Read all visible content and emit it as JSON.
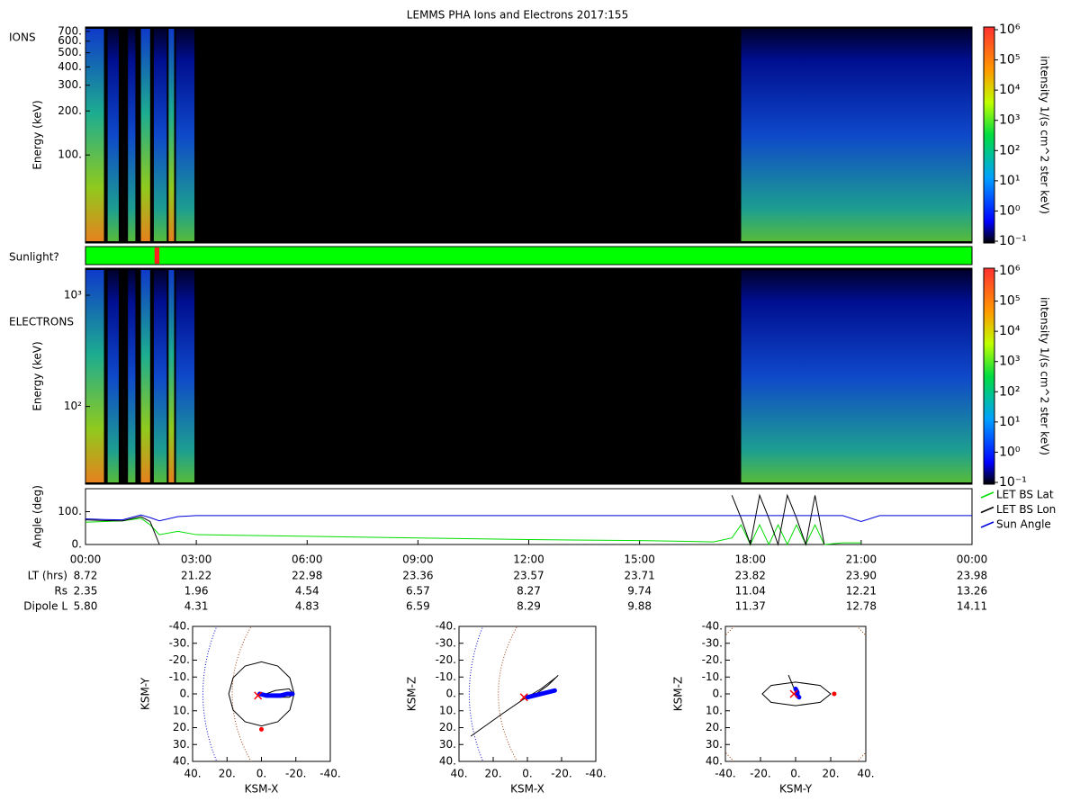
{
  "title": "LEMMS PHA Ions and Electrons  2017:155",
  "sunlight": {
    "label": "Sunlight?",
    "color": "#00ff00",
    "shade_color": "#ff2020",
    "shade": [
      1.87,
      2.0
    ]
  },
  "ephemeris": {
    "rows": [
      {
        "label": "LT (hrs)",
        "values": [
          "8.72",
          "21.22",
          "22.98",
          "23.36",
          "23.57",
          "23.71",
          "23.82",
          "23.90",
          "23.98"
        ]
      },
      {
        "label": "Rs",
        "values": [
          "2.35",
          "1.96",
          "4.54",
          "6.57",
          "8.27",
          "9.74",
          "11.04",
          "12.21",
          "13.26"
        ]
      },
      {
        "label": "Dipole L",
        "values": [
          "5.80",
          "4.31",
          "4.83",
          "6.59",
          "8.29",
          "9.88",
          "11.37",
          "12.78",
          "14.11"
        ]
      }
    ]
  },
  "chart_data": [
    {
      "type": "spectrogram",
      "label": "IONS",
      "ylabel": "Energy (keV)",
      "log_scale": true,
      "xlim": [
        0,
        24
      ],
      "ylim": [
        25,
        750
      ],
      "yticks": [
        {
          "value": 100,
          "label": "100."
        },
        {
          "value": 200,
          "label": "200."
        },
        {
          "value": 300,
          "label": "300."
        },
        {
          "value": 400,
          "label": "400."
        },
        {
          "value": 500,
          "label": "500."
        },
        {
          "value": 600,
          "label": "600."
        },
        {
          "value": 700,
          "label": "700."
        }
      ],
      "colorbar": {
        "label": "intensity 1/(s cm^2 ster keV)",
        "log_scale": true,
        "zlim": [
          0.1,
          1000000
        ],
        "zticks": [
          {
            "value": 0.1,
            "label": "10⁻¹"
          },
          {
            "value": 1,
            "label": "10⁰"
          },
          {
            "value": 10,
            "label": "10¹"
          },
          {
            "value": 100,
            "label": "10²"
          },
          {
            "value": 1000,
            "label": "10³"
          },
          {
            "value": 10000,
            "label": "10⁴"
          },
          {
            "value": 100000,
            "label": "10⁵"
          },
          {
            "value": 1000000,
            "label": "10⁶"
          }
        ]
      }
    },
    {
      "type": "spectrogram",
      "label": "ELECTRONS",
      "ylabel": "Energy (keV)",
      "log_scale": true,
      "xlim": [
        0,
        24
      ],
      "ylim": [
        20,
        1750
      ],
      "yticks": [
        {
          "value": 100,
          "label": "10²"
        },
        {
          "value": 1000,
          "label": "10³"
        }
      ],
      "colorbar": {
        "label": "intensity 1/(s cm^2 ster keV)",
        "log_scale": true,
        "zlim": [
          0.1,
          1000000
        ],
        "zticks": [
          {
            "value": 0.1,
            "label": "10⁻¹"
          },
          {
            "value": 1,
            "label": "10⁰"
          },
          {
            "value": 10,
            "label": "10¹"
          },
          {
            "value": 100,
            "label": "10²"
          },
          {
            "value": 1000,
            "label": "10³"
          },
          {
            "value": 10000,
            "label": "10⁴"
          },
          {
            "value": 100000,
            "label": "10⁵"
          },
          {
            "value": 1000000,
            "label": "10⁶"
          }
        ]
      }
    },
    {
      "type": "line",
      "ylabel": "Angle (deg)",
      "xlim": [
        0,
        24
      ],
      "ylim": [
        0,
        170
      ],
      "yticks": [
        {
          "value": 0,
          "label": "0."
        },
        {
          "value": 100,
          "label": "100."
        }
      ],
      "xticks": [
        {
          "value": 0,
          "label": "00:00"
        },
        {
          "value": 3,
          "label": "03:00"
        },
        {
          "value": 6,
          "label": "06:00"
        },
        {
          "value": 9,
          "label": "09:00"
        },
        {
          "value": 12,
          "label": "12:00"
        },
        {
          "value": 15,
          "label": "15:00"
        },
        {
          "value": 18,
          "label": "18:00"
        },
        {
          "value": 21,
          "label": "21:00"
        },
        {
          "value": 24,
          "label": "00:00"
        }
      ],
      "x": [
        0,
        0.5,
        1,
        1.5,
        1.75,
        2,
        2.5,
        3,
        6,
        9,
        12,
        15,
        17,
        17.5,
        17.75,
        18,
        18.25,
        18.5,
        18.75,
        19,
        19.25,
        19.5,
        19.75,
        20,
        20.5,
        21,
        21.5,
        24
      ],
      "series": [
        {
          "name": "LET BS Lat",
          "color": "#00dd00",
          "values": [
            68,
            70,
            72,
            80,
            60,
            30,
            40,
            30,
            25,
            20,
            15,
            12,
            8,
            20,
            60,
            0,
            60,
            0,
            60,
            0,
            60,
            0,
            60,
            0,
            5,
            5,
            null,
            null
          ]
        },
        {
          "name": "LET BS Lon",
          "color": "#000000",
          "values": [
            75,
            73,
            72,
            85,
            70,
            0,
            null,
            null,
            null,
            null,
            null,
            null,
            null,
            150,
            80,
            0,
            150,
            80,
            0,
            150,
            80,
            0,
            150,
            0,
            null,
            null,
            null,
            null
          ]
        },
        {
          "name": "Sun Angle",
          "color": "#0000dd",
          "values": [
            78,
            76,
            75,
            90,
            82,
            72,
            85,
            88,
            88,
            88,
            88,
            88,
            88,
            88,
            88,
            88,
            88,
            88,
            88,
            88,
            88,
            88,
            88,
            88,
            88,
            70,
            88,
            88
          ]
        }
      ]
    },
    {
      "type": "orbit",
      "xlabel": "KSM-X",
      "ylabel": "KSM-Y",
      "xlim": [
        40,
        -40
      ],
      "ylim": [
        -40,
        40
      ],
      "xticks": [
        {
          "value": 40,
          "label": "40."
        },
        {
          "value": 20,
          "label": "20."
        },
        {
          "value": 0,
          "label": "0."
        },
        {
          "value": -20,
          "label": "-20."
        },
        {
          "value": -40,
          "label": "-40."
        }
      ],
      "yticks": [
        {
          "value": -40,
          "label": "-40."
        },
        {
          "value": -30,
          "label": "-30."
        },
        {
          "value": -20,
          "label": "-20."
        },
        {
          "value": -10,
          "label": "-10."
        },
        {
          "value": 0,
          "label": "0."
        },
        {
          "value": 10,
          "label": "10."
        },
        {
          "value": 20,
          "label": "20."
        },
        {
          "value": 30,
          "label": "30."
        },
        {
          "value": 40,
          "label": "40."
        }
      ],
      "series": [
        {
          "color": "#000000",
          "x": [
            19,
            16.5,
            9.5,
            0,
            -9.5,
            -16.5,
            -19,
            -16.5,
            -9.5,
            0,
            9.5,
            16.5,
            19
          ],
          "y": [
            0,
            9.5,
            16.5,
            19,
            16.5,
            9.5,
            0,
            -9.5,
            -16.5,
            -19,
            -16.5,
            -9.5,
            0
          ]
        },
        {
          "color": "#000000",
          "x": [
            0,
            -8,
            -16,
            -19,
            -16,
            -8,
            0
          ],
          "y": [
            1,
            -2,
            -3,
            0,
            2,
            2,
            1
          ]
        },
        {
          "color": "#0000ff",
          "x": [
            1,
            -3,
            -7,
            -11,
            -15,
            -18
          ],
          "y": [
            0,
            1,
            1,
            1,
            0,
            0
          ]
        }
      ],
      "markers": [
        {
          "x": 0,
          "y": 21,
          "color": "#ff0000",
          "shape": "dot"
        },
        {
          "x": 2,
          "y": 1,
          "color": "#ff0000",
          "shape": "cross"
        }
      ]
    },
    {
      "type": "orbit",
      "xlabel": "KSM-X",
      "ylabel": "KSM-Z",
      "xlim": [
        40,
        -40
      ],
      "ylim": [
        -40,
        40
      ],
      "xticks": [
        {
          "value": 40,
          "label": "40."
        },
        {
          "value": 20,
          "label": "20."
        },
        {
          "value": 0,
          "label": "0."
        },
        {
          "value": -20,
          "label": "-20."
        },
        {
          "value": -40,
          "label": "-40."
        }
      ],
      "yticks": [
        {
          "value": -40,
          "label": "-40."
        },
        {
          "value": -30,
          "label": "-30."
        },
        {
          "value": -20,
          "label": "-20."
        },
        {
          "value": -10,
          "label": "-10."
        },
        {
          "value": 0,
          "label": "0."
        },
        {
          "value": 10,
          "label": "10."
        },
        {
          "value": 20,
          "label": "20."
        },
        {
          "value": 30,
          "label": "30."
        },
        {
          "value": 40,
          "label": "40."
        }
      ],
      "series": [
        {
          "color": "#000000",
          "x": [
            33,
            15,
            2,
            -5,
            -12,
            -18,
            -17,
            -8,
            2
          ],
          "y": [
            25,
            12,
            3,
            0,
            -5,
            -11,
            -10,
            -3,
            3
          ]
        },
        {
          "color": "#0000ff",
          "x": [
            0,
            -4,
            -8,
            -12,
            -16
          ],
          "y": [
            2,
            1,
            0,
            -1,
            -2
          ]
        }
      ],
      "markers": [
        {
          "x": 2,
          "y": 2,
          "color": "#ff0000",
          "shape": "cross"
        }
      ]
    },
    {
      "type": "orbit",
      "xlabel": "KSM-Y",
      "ylabel": "KSM-Z",
      "xlim": [
        -40,
        40
      ],
      "ylim": [
        -40,
        40
      ],
      "xticks": [
        {
          "value": -40,
          "label": "-40."
        },
        {
          "value": -20,
          "label": "-20."
        },
        {
          "value": 0,
          "label": "0."
        },
        {
          "value": 20,
          "label": "20."
        },
        {
          "value": 40,
          "label": "40."
        }
      ],
      "yticks": [
        {
          "value": -40,
          "label": "-40."
        },
        {
          "value": -30,
          "label": "-30."
        },
        {
          "value": -20,
          "label": "-20."
        },
        {
          "value": -10,
          "label": "-10."
        },
        {
          "value": 0,
          "label": "0."
        },
        {
          "value": 10,
          "label": "10."
        },
        {
          "value": 20,
          "label": "20."
        },
        {
          "value": 30,
          "label": "30."
        },
        {
          "value": 40,
          "label": "40."
        }
      ],
      "series": [
        {
          "color": "#000000",
          "x": [
            20,
            14,
            0,
            -14,
            -19,
            -14,
            0,
            14,
            20
          ],
          "y": [
            0,
            -5,
            -7,
            -5,
            0,
            5,
            7,
            5,
            0
          ]
        },
        {
          "color": "#000000",
          "x": [
            -4,
            -2,
            0,
            1
          ],
          "y": [
            -11,
            -6,
            -1,
            1
          ]
        },
        {
          "color": "#0000ff",
          "x": [
            0,
            1,
            1,
            2
          ],
          "y": [
            -3,
            -1,
            1,
            2
          ]
        }
      ],
      "markers": [
        {
          "x": 22,
          "y": 0,
          "color": "#ff0000",
          "shape": "dot"
        },
        {
          "x": -1,
          "y": 0,
          "color": "#ff0000",
          "shape": "cross"
        }
      ]
    }
  ]
}
